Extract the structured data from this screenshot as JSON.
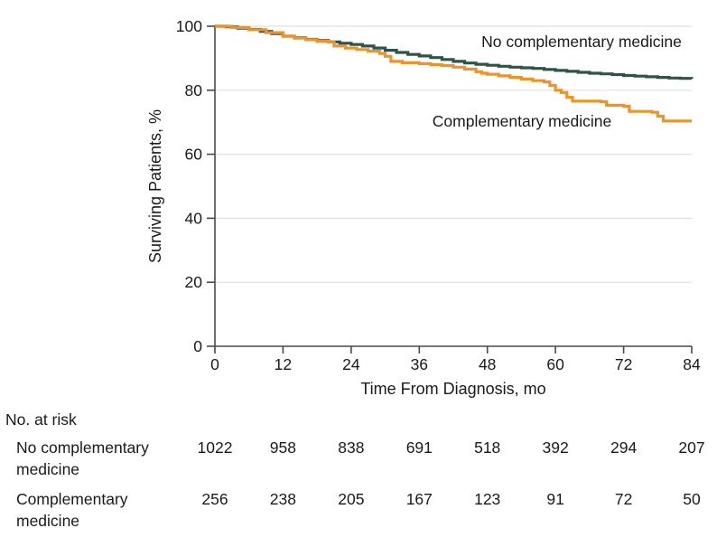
{
  "figure": {
    "background": "#ffffff"
  },
  "chart_data": {
    "type": "line",
    "subtype": "kaplan-meier-step-survival",
    "title": "",
    "xlabel": "Time From Diagnosis, mo",
    "ylabel": "Surviving Patients, %",
    "xlim": [
      0,
      84
    ],
    "ylim": [
      0,
      100
    ],
    "x_ticks": [
      0,
      12,
      24,
      36,
      48,
      60,
      72,
      84
    ],
    "y_ticks": [
      0,
      20,
      40,
      60,
      80,
      100
    ],
    "grid": true,
    "legend_position": "inline-labels",
    "colors": {
      "grid": "#e1e1e1",
      "axis": "#4a4a4a",
      "text": "#1a1a1a"
    },
    "series": [
      {
        "name": "No complementary medicine",
        "color": "#2F5349",
        "points": [
          [
            0,
            100
          ],
          [
            2,
            99.8
          ],
          [
            4,
            99.4
          ],
          [
            6,
            99.0
          ],
          [
            8,
            98.4
          ],
          [
            10,
            97.7
          ],
          [
            12,
            96.9
          ],
          [
            14,
            96.4
          ],
          [
            16,
            95.9
          ],
          [
            18,
            95.5
          ],
          [
            20,
            95.1
          ],
          [
            22,
            94.7
          ],
          [
            24,
            94.3
          ],
          [
            26,
            93.8
          ],
          [
            28,
            93.2
          ],
          [
            30,
            92.5
          ],
          [
            32,
            91.8
          ],
          [
            34,
            91.2
          ],
          [
            36,
            90.7
          ],
          [
            38,
            90.2
          ],
          [
            40,
            89.6
          ],
          [
            42,
            89.0
          ],
          [
            44,
            88.5
          ],
          [
            46,
            88.1
          ],
          [
            48,
            87.8
          ],
          [
            50,
            87.5
          ],
          [
            52,
            87.2
          ],
          [
            54,
            87.0
          ],
          [
            56,
            86.8
          ],
          [
            58,
            86.5
          ],
          [
            60,
            86.2
          ],
          [
            62,
            85.9
          ],
          [
            64,
            85.6
          ],
          [
            66,
            85.3
          ],
          [
            68,
            85.1
          ],
          [
            70,
            84.9
          ],
          [
            72,
            84.6
          ],
          [
            74,
            84.4
          ],
          [
            76,
            84.2
          ],
          [
            78,
            84.0
          ],
          [
            80,
            83.8
          ],
          [
            82,
            83.7
          ],
          [
            84,
            83.6
          ]
        ]
      },
      {
        "name": "Complementary medicine",
        "color": "#EF9327",
        "points": [
          [
            0,
            100
          ],
          [
            3,
            99.6
          ],
          [
            6,
            98.9
          ],
          [
            9,
            98.0
          ],
          [
            12,
            96.9
          ],
          [
            14,
            96.3
          ],
          [
            16,
            95.8
          ],
          [
            18,
            95.3
          ],
          [
            20,
            95.0
          ],
          [
            21,
            93.8
          ],
          [
            23,
            93.2
          ],
          [
            25,
            92.7
          ],
          [
            27,
            92.2
          ],
          [
            29,
            91.5
          ],
          [
            30,
            90.6
          ],
          [
            31,
            89.0
          ],
          [
            33,
            88.6
          ],
          [
            36,
            88.3
          ],
          [
            38,
            88.0
          ],
          [
            40,
            87.7
          ],
          [
            42,
            87.2
          ],
          [
            44,
            86.6
          ],
          [
            46,
            85.8
          ],
          [
            47,
            85.3
          ],
          [
            48,
            85.0
          ],
          [
            50,
            84.5
          ],
          [
            52,
            84.0
          ],
          [
            54,
            83.5
          ],
          [
            56,
            83.0
          ],
          [
            58,
            82.6
          ],
          [
            59,
            81.5
          ],
          [
            60,
            80.0
          ],
          [
            61,
            79.3
          ],
          [
            62,
            77.8
          ],
          [
            63,
            76.6
          ],
          [
            68,
            76.4
          ],
          [
            69,
            75.3
          ],
          [
            72,
            75.0
          ],
          [
            73,
            73.4
          ],
          [
            77,
            73.1
          ],
          [
            78,
            71.9
          ],
          [
            79,
            70.4
          ],
          [
            84,
            70.4
          ]
        ]
      }
    ],
    "risk_table": {
      "title": "No. at risk",
      "time_points": [
        0,
        12,
        24,
        36,
        48,
        60,
        72,
        84
      ],
      "rows": [
        {
          "label_lines": [
            "No complementary",
            "medicine"
          ],
          "values": [
            1022,
            958,
            838,
            691,
            518,
            392,
            294,
            207
          ]
        },
        {
          "label_lines": [
            "Complementary",
            "medicine"
          ],
          "values": [
            256,
            238,
            205,
            167,
            123,
            91,
            72,
            50
          ]
        }
      ]
    }
  }
}
